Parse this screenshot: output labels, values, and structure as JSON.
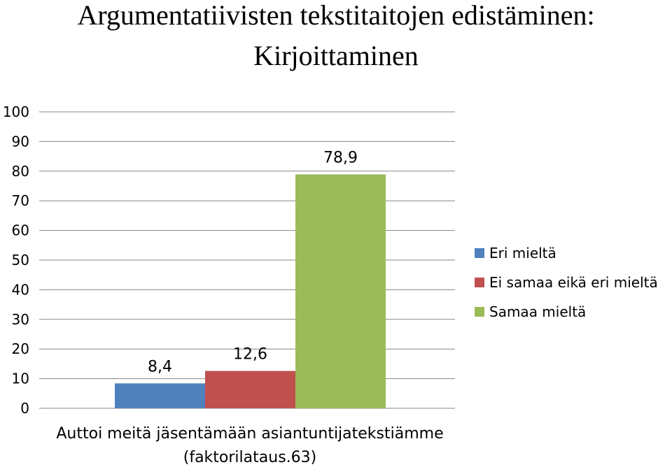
{
  "chart_data": {
    "type": "bar",
    "title_lines": [
      "Argumentatiivisten tekstitaitojen edistäminen:",
      "Kirjoittaminen"
    ],
    "category_label_lines": [
      "Auttoi meitä jäsentämään asiantuntijatekstiämme",
      "(faktorilataus.63)"
    ],
    "series": [
      {
        "name": "Eri mieltä",
        "value": 8.4,
        "label": "8,4",
        "color": "#4f81bd"
      },
      {
        "name": "Ei samaa eikä eri mieltä",
        "value": 12.6,
        "label": "12,6",
        "color": "#c0504d"
      },
      {
        "name": "Samaa mieltä",
        "value": 78.9,
        "label": "78,9",
        "color": "#9bbb59"
      }
    ],
    "ylim": [
      0,
      100
    ],
    "yticks": [
      0,
      10,
      20,
      30,
      40,
      50,
      60,
      70,
      80,
      90,
      100
    ],
    "grid": true,
    "legend_position": "right"
  }
}
